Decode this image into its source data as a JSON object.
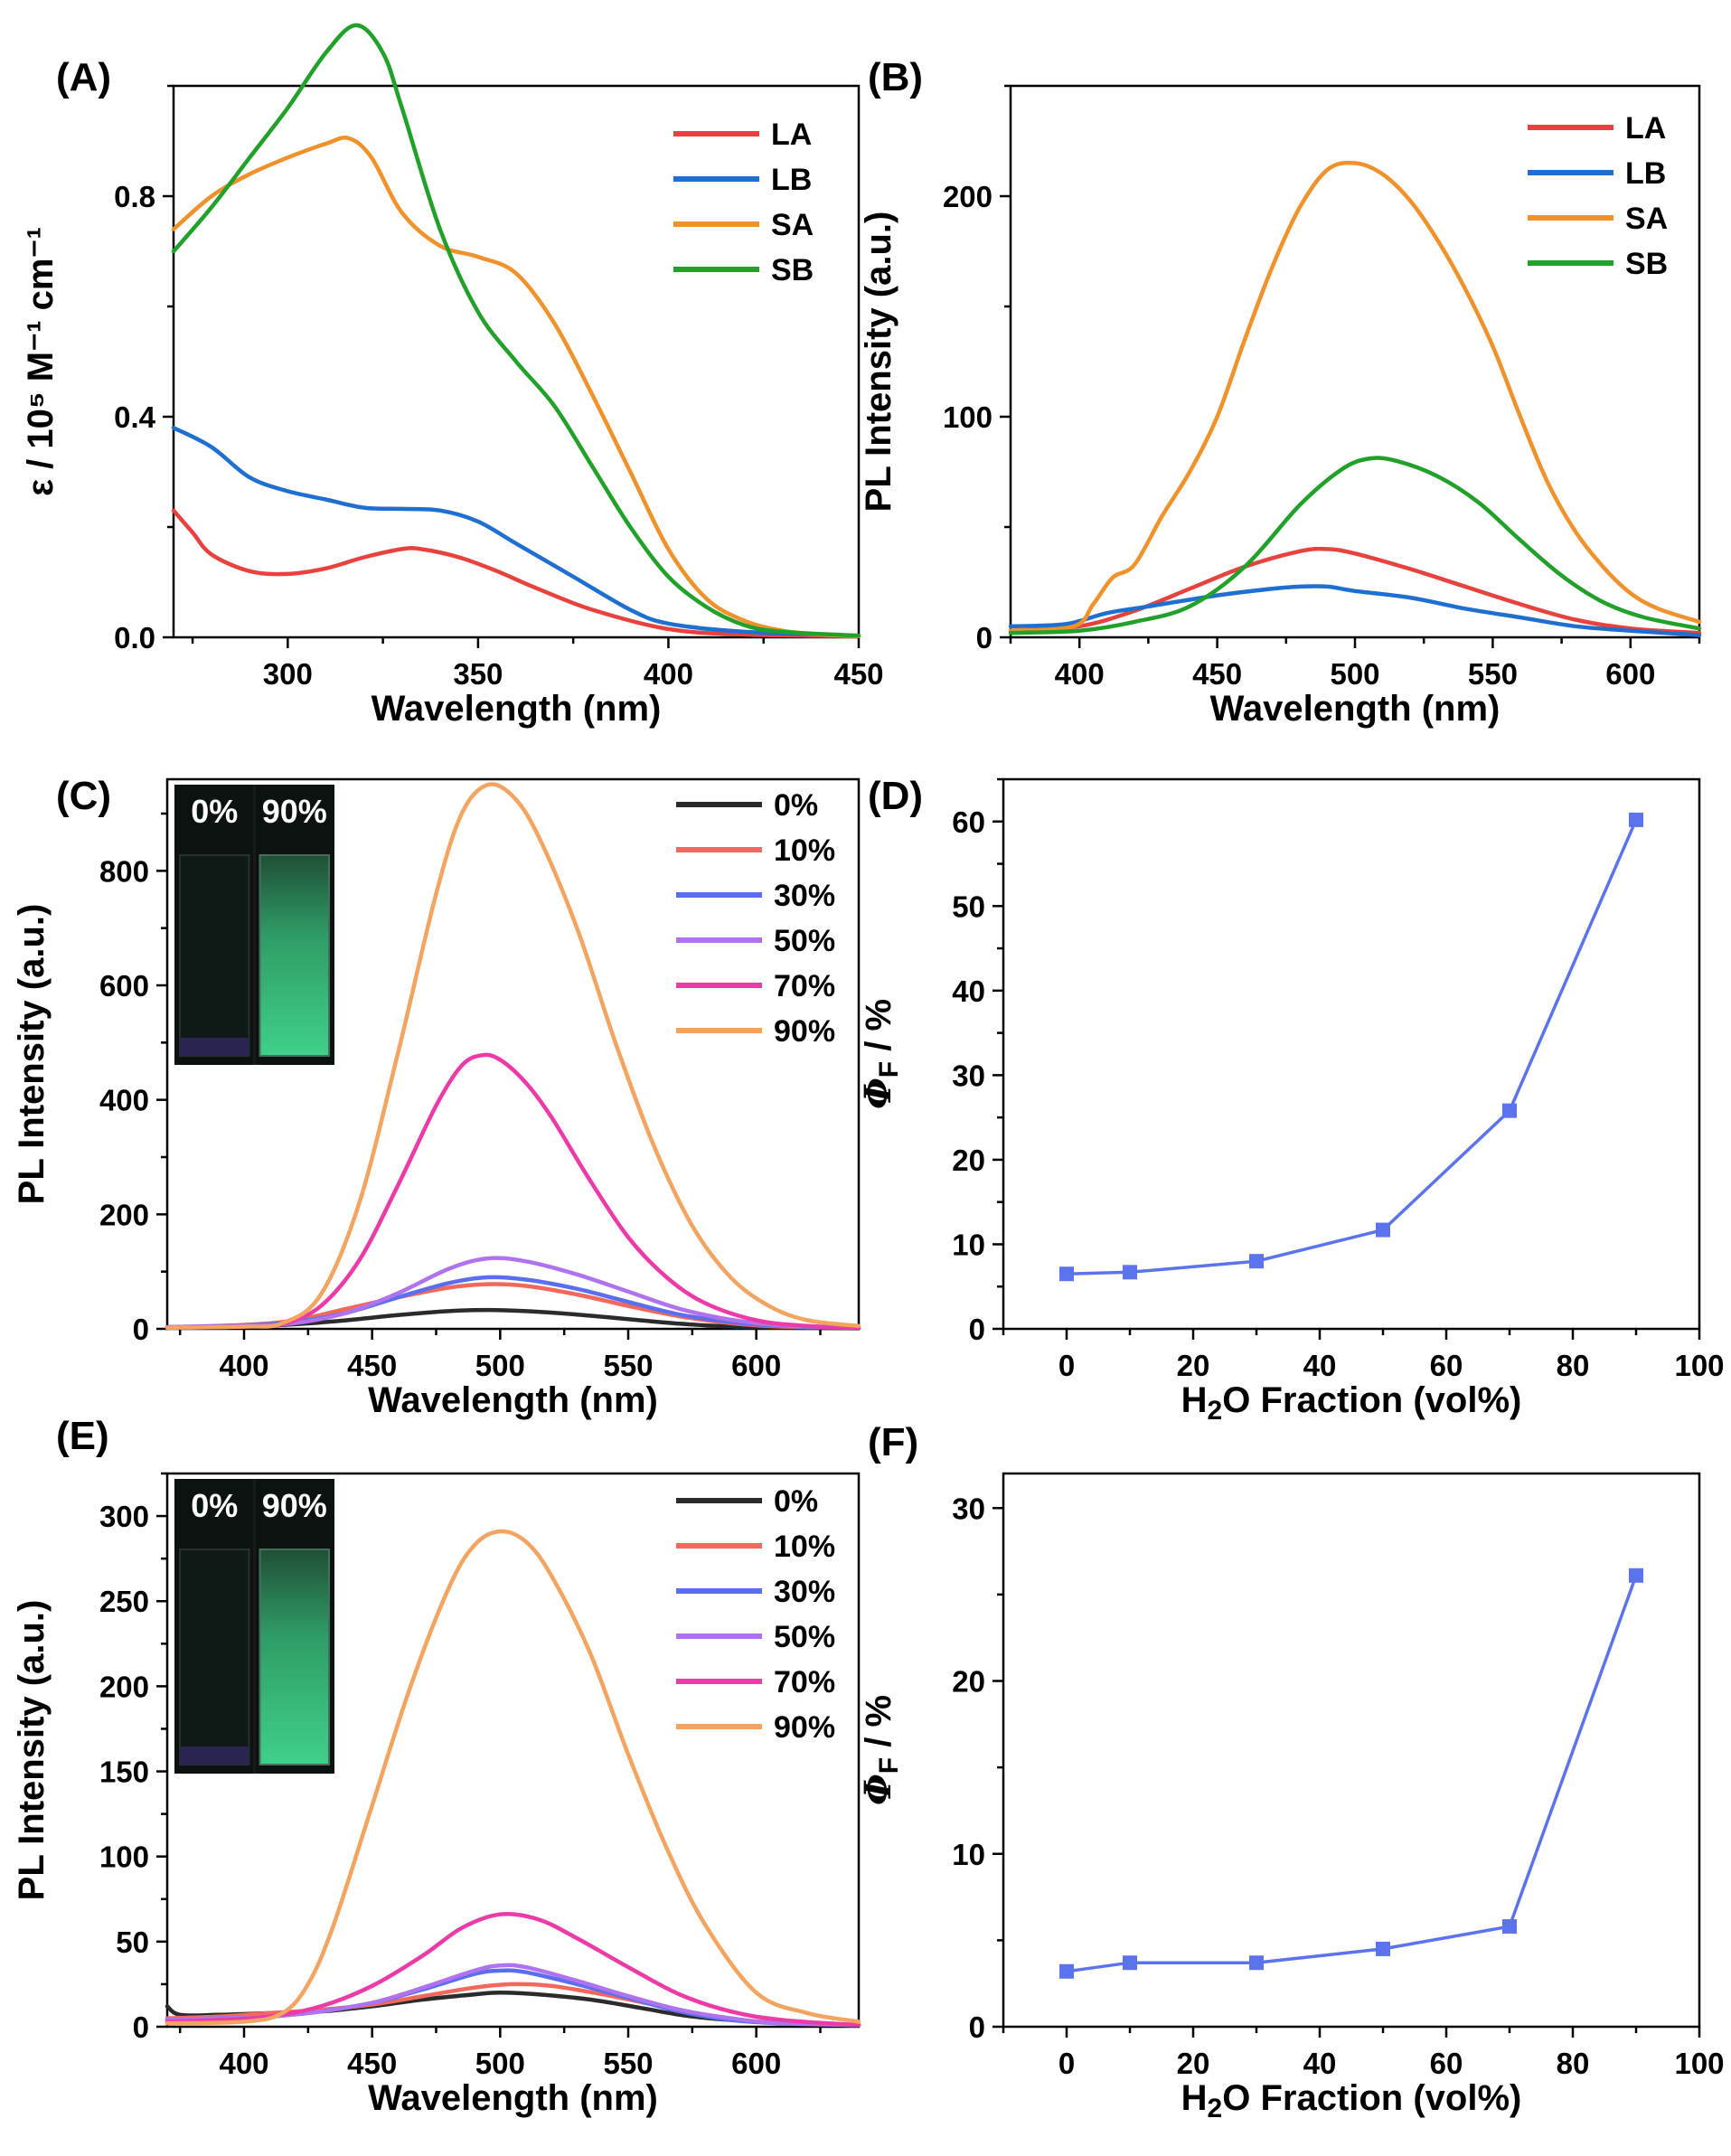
{
  "chart_data": [
    {
      "panel": "(A)",
      "type": "line",
      "xlabel": "Wavelength (nm)",
      "ylabel": "ε / 10⁵ M⁻¹ cm⁻¹",
      "xlim": [
        270,
        450
      ],
      "ylim": [
        0,
        1.0
      ],
      "x_ticks": [
        300,
        350,
        400,
        450
      ],
      "y_ticks": [
        0.0,
        0.4,
        0.8
      ],
      "y_tick_labels": [
        "0.0",
        "0.4",
        "0.8"
      ],
      "legend_position": "top-right",
      "series": [
        {
          "name": "LA",
          "color": "#e8423e",
          "x": [
            270,
            275,
            280,
            290,
            300,
            310,
            320,
            330,
            335,
            345,
            355,
            365,
            380,
            400,
            420,
            450
          ],
          "y": [
            0.23,
            0.19,
            0.15,
            0.12,
            0.115,
            0.125,
            0.145,
            0.16,
            0.16,
            0.145,
            0.12,
            0.09,
            0.05,
            0.015,
            0.005,
            0.002
          ]
        },
        {
          "name": "LB",
          "color": "#1f6fd1",
          "x": [
            270,
            280,
            290,
            300,
            310,
            320,
            330,
            340,
            350,
            360,
            375,
            390,
            400,
            420,
            450
          ],
          "y": [
            0.38,
            0.345,
            0.29,
            0.265,
            0.25,
            0.235,
            0.233,
            0.23,
            0.21,
            0.17,
            0.11,
            0.05,
            0.025,
            0.01,
            0.003
          ]
        },
        {
          "name": "SA",
          "color": "#f0922b",
          "x": [
            270,
            280,
            290,
            300,
            310,
            316,
            322,
            330,
            340,
            350,
            360,
            370,
            380,
            390,
            400,
            410,
            420,
            430,
            440,
            450
          ],
          "y": [
            0.74,
            0.8,
            0.84,
            0.87,
            0.895,
            0.905,
            0.87,
            0.77,
            0.71,
            0.69,
            0.66,
            0.57,
            0.44,
            0.3,
            0.16,
            0.07,
            0.03,
            0.012,
            0.005,
            0.002
          ]
        },
        {
          "name": "SB",
          "color": "#21a12a",
          "x": [
            270,
            280,
            290,
            300,
            310,
            318,
            325,
            330,
            340,
            350,
            360,
            370,
            380,
            390,
            400,
            410,
            420,
            430,
            450
          ],
          "y": [
            0.7,
            0.78,
            0.87,
            0.96,
            1.06,
            1.11,
            1.06,
            0.96,
            0.74,
            0.59,
            0.5,
            0.42,
            0.31,
            0.2,
            0.11,
            0.055,
            0.022,
            0.01,
            0.003
          ]
        }
      ]
    },
    {
      "panel": "(B)",
      "type": "line",
      "xlabel": "Wavelength (nm)",
      "ylabel": "PL Intensity (a.u.)",
      "xlim": [
        375,
        625
      ],
      "ylim": [
        0,
        250
      ],
      "x_ticks": [
        400,
        450,
        500,
        550,
        600
      ],
      "y_ticks": [
        0,
        100,
        200
      ],
      "legend_position": "top-right",
      "series": [
        {
          "name": "LA",
          "color": "#e8423e",
          "x": [
            375,
            400,
            420,
            440,
            460,
            480,
            490,
            500,
            520,
            540,
            560,
            580,
            600,
            625
          ],
          "y": [
            3,
            5,
            12,
            22,
            32,
            39,
            40,
            38,
            31,
            23,
            15,
            8,
            4,
            2
          ]
        },
        {
          "name": "LB",
          "color": "#1f6fd1",
          "x": [
            375,
            395,
            410,
            425,
            450,
            470,
            480,
            490,
            500,
            520,
            540,
            560,
            580,
            600,
            625
          ],
          "y": [
            5,
            6,
            11,
            14,
            19,
            22,
            23,
            23,
            21,
            18,
            13,
            9,
            5,
            3,
            1
          ]
        },
        {
          "name": "SA",
          "color": "#f0922b",
          "x": [
            375,
            398,
            405,
            412,
            420,
            430,
            440,
            450,
            460,
            470,
            480,
            490,
            500,
            510,
            520,
            530,
            540,
            550,
            560,
            570,
            580,
            590,
            600,
            610,
            625
          ],
          "y": [
            3,
            5,
            15,
            27,
            33,
            55,
            75,
            100,
            135,
            168,
            195,
            212,
            215,
            210,
            198,
            180,
            158,
            132,
            100,
            70,
            48,
            32,
            20,
            13,
            7
          ]
        },
        {
          "name": "SB",
          "color": "#21a12a",
          "x": [
            375,
            400,
            420,
            440,
            460,
            480,
            495,
            505,
            515,
            530,
            545,
            560,
            575,
            590,
            605,
            625
          ],
          "y": [
            2,
            3,
            7,
            14,
            32,
            60,
            76,
            81,
            80,
            73,
            61,
            44,
            28,
            16,
            9,
            4
          ]
        }
      ]
    },
    {
      "panel": "(C)",
      "type": "line",
      "xlabel": "Wavelength (nm)",
      "ylabel": "PL Intensity (a.u.)",
      "xlim": [
        370,
        640
      ],
      "ylim": [
        0,
        960
      ],
      "x_ticks": [
        400,
        450,
        500,
        550,
        600
      ],
      "y_ticks": [
        0,
        200,
        400,
        600,
        800
      ],
      "legend_position": "top-right",
      "inset_labels": [
        "0%",
        "90%"
      ],
      "series": [
        {
          "name": "0%",
          "color": "#2b2b2b",
          "x": [
            370,
            400,
            420,
            440,
            460,
            480,
            495,
            510,
            530,
            550,
            570,
            590,
            610,
            640
          ],
          "y": [
            2,
            4,
            8,
            15,
            24,
            31,
            33,
            31,
            25,
            17,
            9,
            4,
            2,
            1
          ]
        },
        {
          "name": "10%",
          "color": "#f2685a",
          "x": [
            370,
            400,
            420,
            440,
            460,
            480,
            495,
            510,
            530,
            550,
            570,
            590,
            610,
            640
          ],
          "y": [
            3,
            7,
            15,
            35,
            55,
            72,
            78,
            75,
            60,
            40,
            22,
            10,
            4,
            2
          ]
        },
        {
          "name": "30%",
          "color": "#5b6ef0",
          "x": [
            370,
            400,
            420,
            440,
            460,
            480,
            495,
            510,
            530,
            550,
            570,
            590,
            610,
            640
          ],
          "y": [
            3,
            6,
            12,
            28,
            55,
            80,
            90,
            86,
            70,
            47,
            25,
            12,
            5,
            2
          ]
        },
        {
          "name": "50%",
          "color": "#b073f0",
          "x": [
            370,
            400,
            420,
            440,
            460,
            480,
            495,
            510,
            530,
            550,
            570,
            590,
            610,
            640
          ],
          "y": [
            3,
            5,
            10,
            28,
            62,
            105,
            123,
            118,
            95,
            65,
            35,
            16,
            6,
            2
          ]
        },
        {
          "name": "70%",
          "color": "#ec3ba6",
          "x": [
            370,
            400,
            415,
            430,
            445,
            460,
            475,
            485,
            493,
            500,
            510,
            520,
            535,
            550,
            565,
            580,
            600,
            620,
            640
          ],
          "y": [
            2,
            4,
            8,
            40,
            120,
            250,
            390,
            460,
            478,
            470,
            430,
            370,
            260,
            160,
            90,
            45,
            15,
            5,
            2
          ]
        },
        {
          "name": "90%",
          "color": "#f3a460",
          "x": [
            370,
            400,
            415,
            430,
            445,
            460,
            475,
            485,
            495,
            505,
            515,
            530,
            545,
            560,
            575,
            590,
            605,
            620,
            640
          ],
          "y": [
            2,
            4,
            10,
            60,
            220,
            480,
            760,
            900,
            950,
            930,
            860,
            700,
            500,
            320,
            180,
            90,
            40,
            15,
            5
          ]
        }
      ]
    },
    {
      "panel": "(D)",
      "type": "scatter",
      "xlabel": "H2O Fraction (vol%)",
      "ylabel": "ΦF / %",
      "xlim": [
        -10,
        100
      ],
      "ylim": [
        0,
        65
      ],
      "x_ticks": [
        0,
        20,
        40,
        60,
        80,
        100
      ],
      "y_ticks": [
        0,
        10,
        20,
        30,
        40,
        50,
        60
      ],
      "series": [
        {
          "color": "#5b74ee",
          "x": [
            0,
            10,
            30,
            50,
            70,
            90
          ],
          "y": [
            6.5,
            6.7,
            8.0,
            11.7,
            25.8,
            60.2
          ]
        }
      ]
    },
    {
      "panel": "(E)",
      "type": "line",
      "xlabel": "Wavelength (nm)",
      "ylabel": "PL Intensity (a.u.)",
      "xlim": [
        370,
        640
      ],
      "ylim": [
        0,
        325
      ],
      "x_ticks": [
        400,
        450,
        500,
        550,
        600
      ],
      "y_ticks": [
        0,
        50,
        100,
        150,
        200,
        250,
        300
      ],
      "legend_position": "top-right",
      "inset_labels": [
        "0%",
        "90%"
      ],
      "series": [
        {
          "name": "0%",
          "color": "#2b2b2b",
          "x": [
            370,
            375,
            390,
            410,
            430,
            450,
            470,
            490,
            500,
            515,
            535,
            555,
            575,
            600,
            640
          ],
          "y": [
            12,
            7,
            7,
            8,
            9,
            12,
            16,
            19,
            20,
            19,
            16,
            11,
            6,
            3,
            1
          ]
        },
        {
          "name": "10%",
          "color": "#f2685a",
          "x": [
            370,
            390,
            410,
            430,
            450,
            470,
            490,
            505,
            520,
            540,
            560,
            580,
            600,
            640
          ],
          "y": [
            5,
            6,
            8,
            10,
            13,
            18,
            23,
            25,
            24,
            19,
            13,
            7,
            3,
            1
          ]
        },
        {
          "name": "30%",
          "color": "#5b6ef0",
          "x": [
            370,
            390,
            410,
            430,
            450,
            470,
            490,
            500,
            510,
            530,
            550,
            570,
            590,
            610,
            640
          ],
          "y": [
            4,
            5,
            6,
            9,
            14,
            22,
            31,
            33,
            32,
            25,
            17,
            9,
            4,
            2,
            1
          ]
        },
        {
          "name": "50%",
          "color": "#b073f0",
          "x": [
            370,
            390,
            410,
            430,
            450,
            470,
            490,
            500,
            510,
            530,
            550,
            570,
            590,
            610,
            640
          ],
          "y": [
            4,
            5,
            6,
            9,
            14,
            23,
            33,
            36,
            35,
            27,
            18,
            10,
            5,
            2,
            1
          ]
        },
        {
          "name": "70%",
          "color": "#ec3ba6",
          "x": [
            370,
            390,
            410,
            430,
            450,
            470,
            485,
            500,
            515,
            530,
            550,
            570,
            590,
            610,
            640
          ],
          "y": [
            3,
            4,
            6,
            12,
            24,
            42,
            58,
            66,
            63,
            52,
            35,
            19,
            9,
            4,
            1
          ]
        },
        {
          "name": "90%",
          "color": "#f3a460",
          "x": [
            370,
            400,
            415,
            425,
            435,
            450,
            465,
            480,
            490,
            500,
            510,
            520,
            535,
            550,
            565,
            580,
            600,
            620,
            640
          ],
          "y": [
            2,
            3,
            8,
            25,
            60,
            130,
            200,
            258,
            283,
            291,
            285,
            265,
            220,
            160,
            105,
            60,
            20,
            8,
            3
          ]
        }
      ]
    },
    {
      "panel": "(F)",
      "type": "scatter",
      "xlabel": "H2O Fraction (vol%)",
      "ylabel": "ΦF / %",
      "xlim": [
        -10,
        100
      ],
      "ylim": [
        0,
        32
      ],
      "x_ticks": [
        0,
        20,
        40,
        60,
        80,
        100
      ],
      "y_ticks": [
        0,
        10,
        20,
        30
      ],
      "series": [
        {
          "color": "#5b74ee",
          "x": [
            0,
            10,
            30,
            50,
            70,
            90
          ],
          "y": [
            3.2,
            3.7,
            3.7,
            4.5,
            5.8,
            26.1
          ]
        }
      ]
    }
  ]
}
